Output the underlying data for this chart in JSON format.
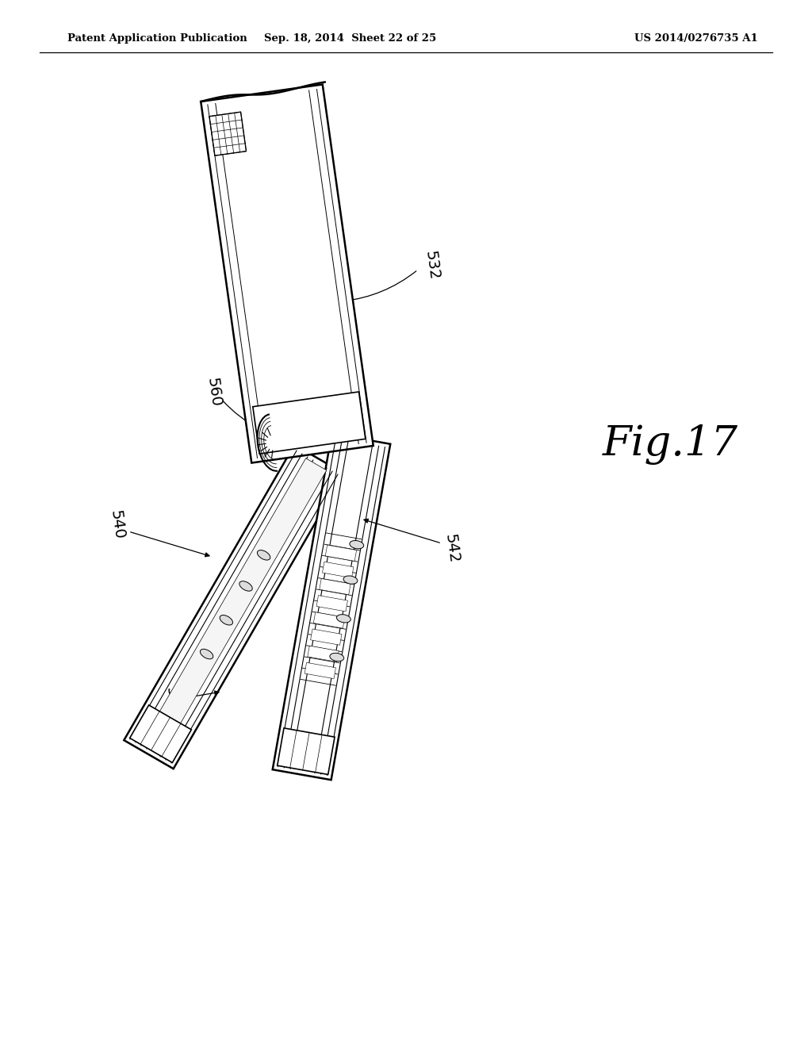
{
  "background_color": "#ffffff",
  "header_left": "Patent Application Publication",
  "header_mid": "Sep. 18, 2014  Sheet 22 of 25",
  "header_right": "US 2014/0276735 A1",
  "fig_label": "Fig.17",
  "text_color": "#000000",
  "line_color": "#000000"
}
